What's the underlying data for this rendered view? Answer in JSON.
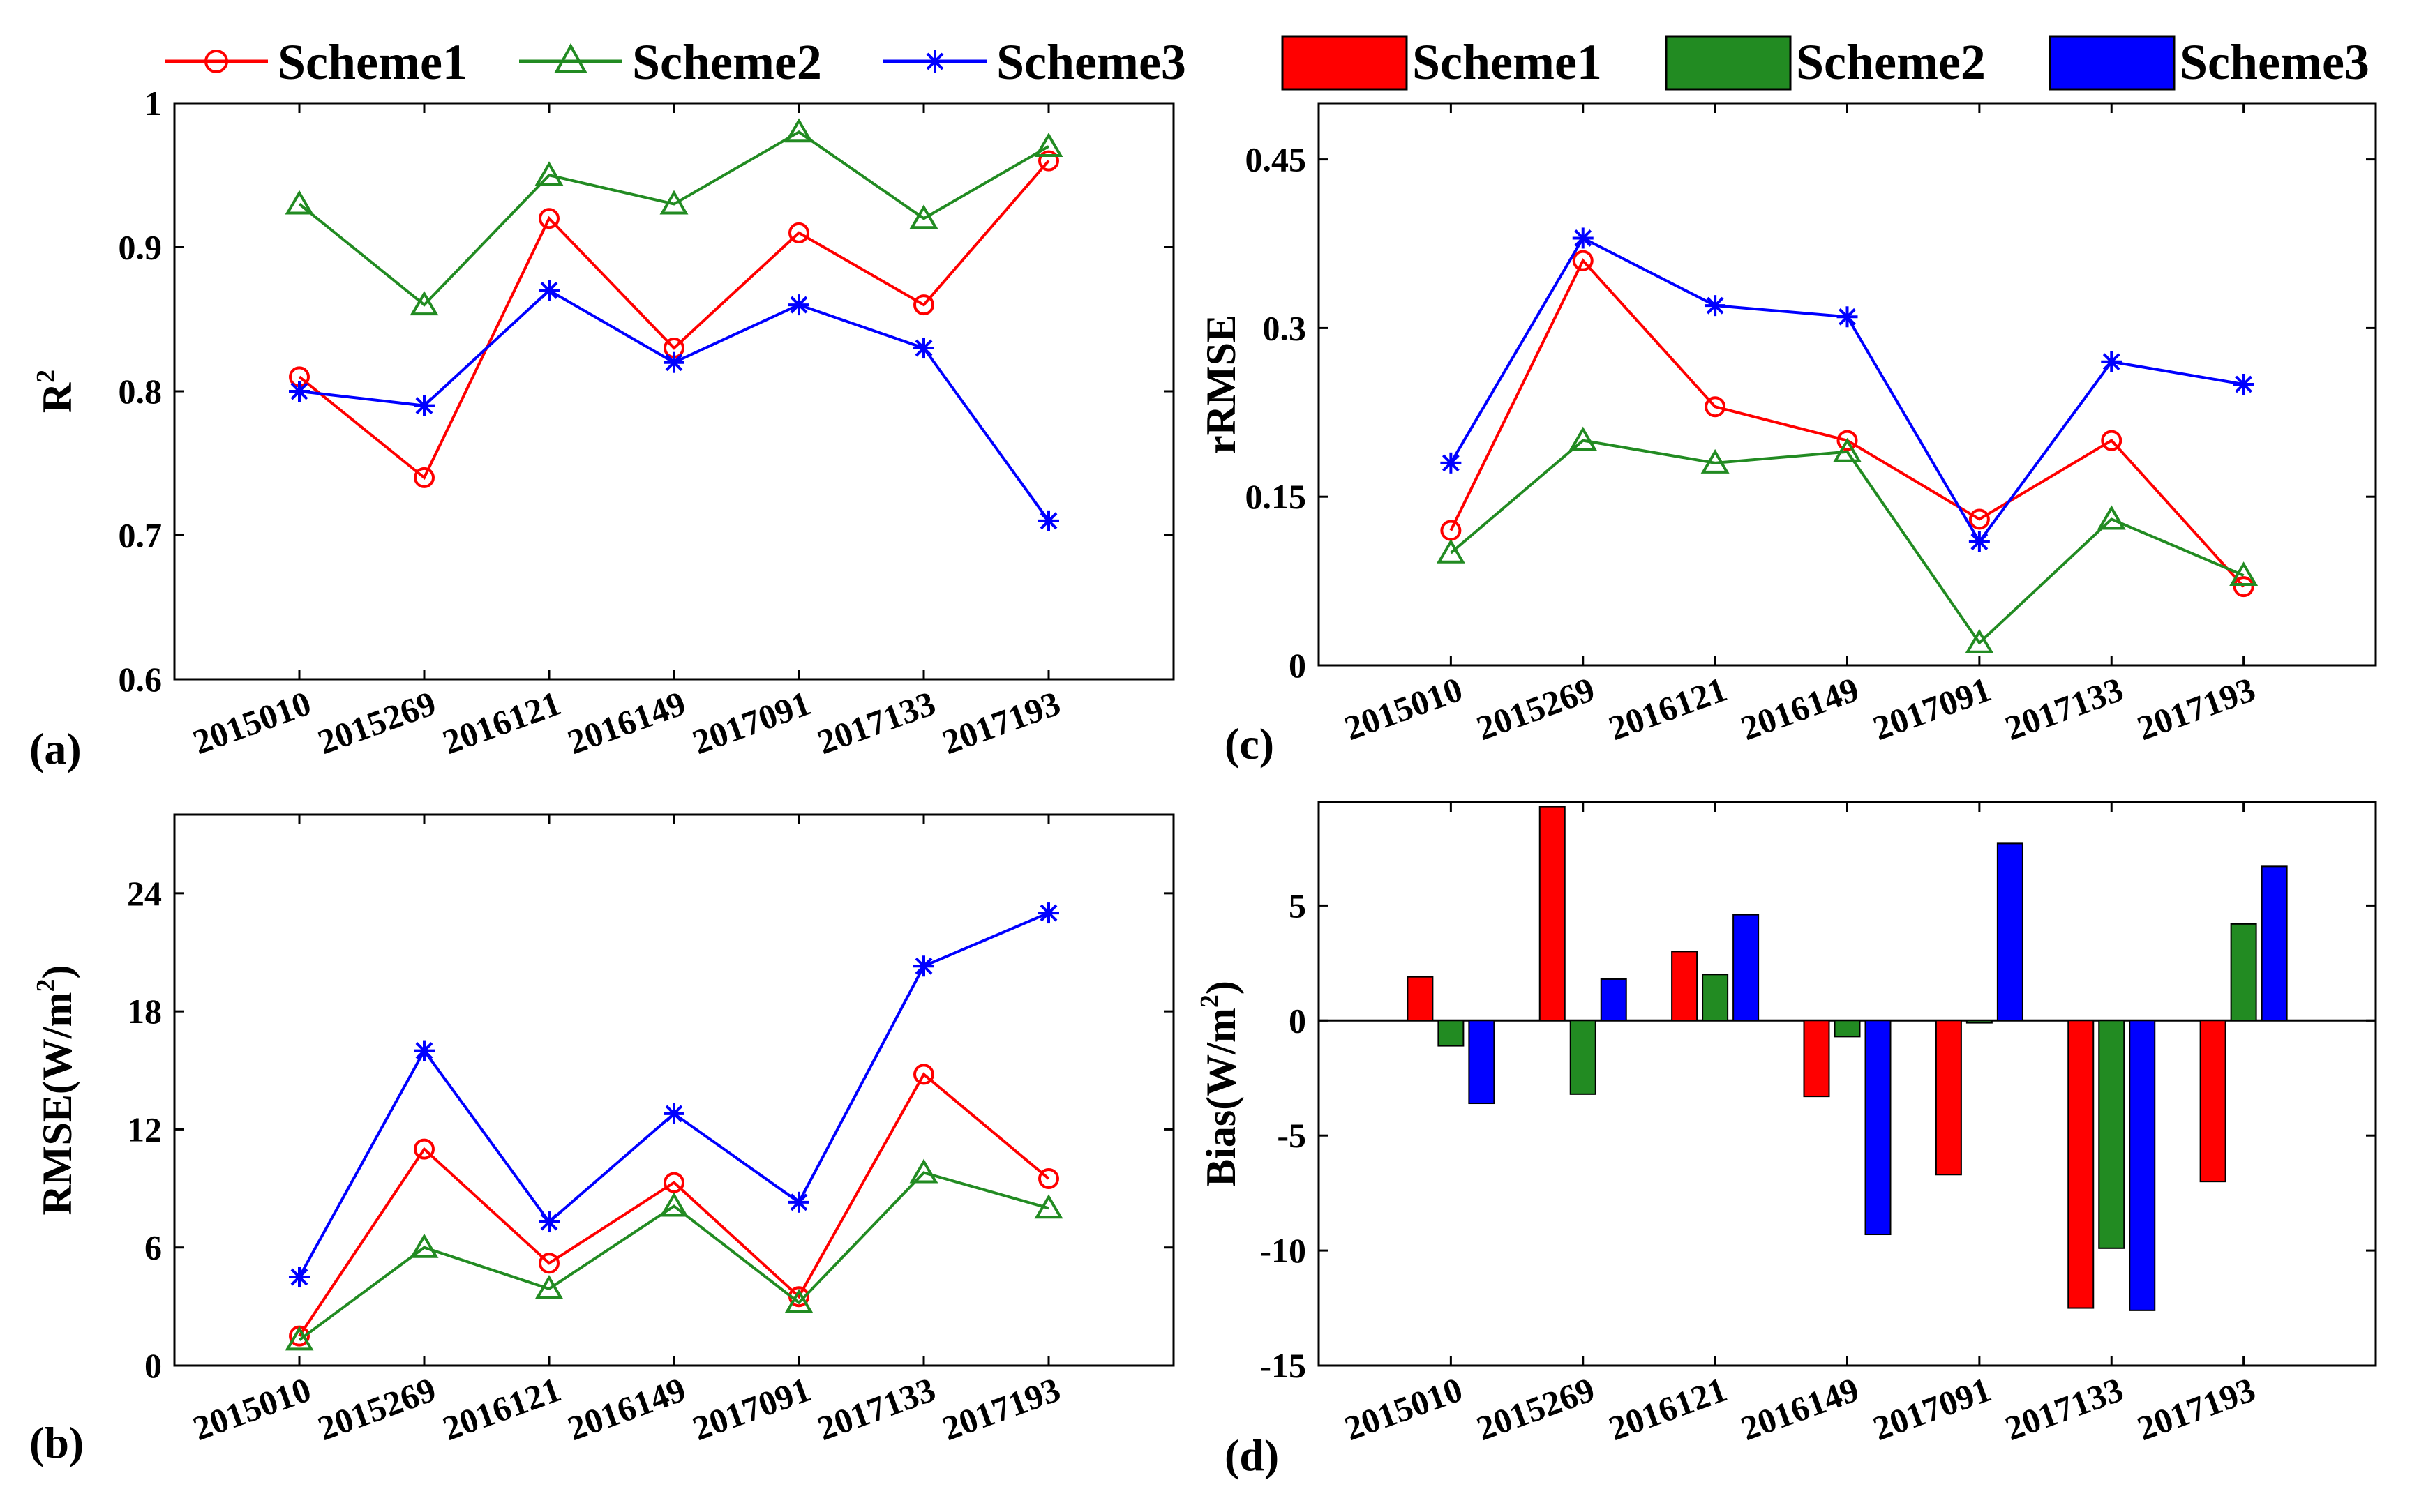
{
  "legend_lines": {
    "items": [
      {
        "label": "Scheme1",
        "color": "#ff0000",
        "marker": "circle"
      },
      {
        "label": "Scheme2",
        "color": "#228b22",
        "marker": "triangle"
      },
      {
        "label": "Scheme3",
        "color": "#0000ff",
        "marker": "asterisk"
      }
    ]
  },
  "legend_bars": {
    "items": [
      {
        "label": "Scheme1",
        "color": "#ff0000"
      },
      {
        "label": "Scheme2",
        "color": "#228b22"
      },
      {
        "label": "Scheme3",
        "color": "#0000ff"
      }
    ]
  },
  "chart_data": [
    {
      "id": "a",
      "panel_label": "(a)",
      "type": "line",
      "title": "",
      "xlabel": "",
      "ylabel": "R",
      "ylabel_sup": "2",
      "categories": [
        "2015010",
        "2015269",
        "2016121",
        "2016149",
        "2017091",
        "2017133",
        "2017193"
      ],
      "ylim": [
        0.6,
        1.0
      ],
      "yticks": [
        0.6,
        0.7,
        0.8,
        0.9,
        1.0
      ],
      "yticklabels": [
        "0.6",
        "0.7",
        "0.8",
        "0.9",
        "1"
      ],
      "series": [
        {
          "name": "Scheme1",
          "color": "#ff0000",
          "marker": "circle",
          "values": [
            0.81,
            0.74,
            0.92,
            0.83,
            0.91,
            0.86,
            0.96
          ]
        },
        {
          "name": "Scheme2",
          "color": "#228b22",
          "marker": "triangle",
          "values": [
            0.93,
            0.86,
            0.95,
            0.93,
            0.98,
            0.92,
            0.97
          ]
        },
        {
          "name": "Scheme3",
          "color": "#0000ff",
          "marker": "asterisk",
          "values": [
            0.8,
            0.79,
            0.87,
            0.82,
            0.86,
            0.83,
            0.71
          ]
        }
      ]
    },
    {
      "id": "c",
      "panel_label": "(c)",
      "type": "line",
      "title": "",
      "xlabel": "",
      "ylabel": "rRMSE",
      "ylabel_sup": "",
      "categories": [
        "2015010",
        "2015269",
        "2016121",
        "2016149",
        "2017091",
        "2017133",
        "2017193"
      ],
      "ylim": [
        0,
        0.5
      ],
      "yticks": [
        0,
        0.15,
        0.3,
        0.45
      ],
      "yticklabels": [
        "0",
        "0.15",
        "0.3",
        "0.45"
      ],
      "series": [
        {
          "name": "Scheme1",
          "color": "#ff0000",
          "marker": "circle",
          "values": [
            0.12,
            0.36,
            0.23,
            0.2,
            0.13,
            0.2,
            0.07
          ]
        },
        {
          "name": "Scheme2",
          "color": "#228b22",
          "marker": "triangle",
          "values": [
            0.1,
            0.2,
            0.18,
            0.19,
            0.02,
            0.13,
            0.08
          ]
        },
        {
          "name": "Scheme3",
          "color": "#0000ff",
          "marker": "asterisk",
          "values": [
            0.18,
            0.38,
            0.32,
            0.31,
            0.11,
            0.27,
            0.25
          ]
        }
      ]
    },
    {
      "id": "b",
      "panel_label": "(b)",
      "type": "line",
      "title": "",
      "xlabel": "",
      "ylabel": "RMSE(W/m",
      "ylabel_sup": "2",
      "ylabel_end": ")",
      "categories": [
        "2015010",
        "2015269",
        "2016121",
        "2016149",
        "2017091",
        "2017133",
        "2017193"
      ],
      "ylim": [
        0,
        28
      ],
      "yticks": [
        0,
        6,
        12,
        18,
        24
      ],
      "yticklabels": [
        "0",
        "6",
        "12",
        "18",
        "24"
      ],
      "series": [
        {
          "name": "Scheme1",
          "color": "#ff0000",
          "marker": "circle",
          "values": [
            1.5,
            11.0,
            5.2,
            9.3,
            3.5,
            14.8,
            9.5
          ]
        },
        {
          "name": "Scheme2",
          "color": "#228b22",
          "marker": "triangle",
          "values": [
            1.3,
            6.0,
            3.9,
            8.1,
            3.2,
            9.8,
            8.0
          ]
        },
        {
          "name": "Scheme3",
          "color": "#0000ff",
          "marker": "asterisk",
          "values": [
            4.5,
            16.0,
            7.3,
            12.8,
            8.3,
            20.3,
            23.0
          ]
        }
      ]
    },
    {
      "id": "d",
      "panel_label": "(d)",
      "type": "bar",
      "title": "",
      "xlabel": "",
      "ylabel": "Bias(W/m",
      "ylabel_sup": "2",
      "ylabel_end": ")",
      "categories": [
        "2015010",
        "2015269",
        "2016121",
        "2016149",
        "2017091",
        "2017133",
        "2017193"
      ],
      "ylim": [
        -15,
        9.5
      ],
      "yticks": [
        -15,
        -10,
        -5,
        0,
        5
      ],
      "yticklabels": [
        "-15",
        "-10",
        "-5",
        "0",
        "5"
      ],
      "series": [
        {
          "name": "Scheme1",
          "color": "#ff0000",
          "values": [
            1.9,
            9.3,
            3.0,
            -3.3,
            -6.7,
            -12.5,
            -7.0
          ]
        },
        {
          "name": "Scheme2",
          "color": "#228b22",
          "values": [
            -1.1,
            -3.2,
            2.0,
            -0.7,
            -0.1,
            -9.9,
            4.2
          ]
        },
        {
          "name": "Scheme3",
          "color": "#0000ff",
          "values": [
            -3.6,
            1.8,
            4.6,
            -9.3,
            7.7,
            -12.6,
            6.7
          ]
        }
      ]
    }
  ]
}
